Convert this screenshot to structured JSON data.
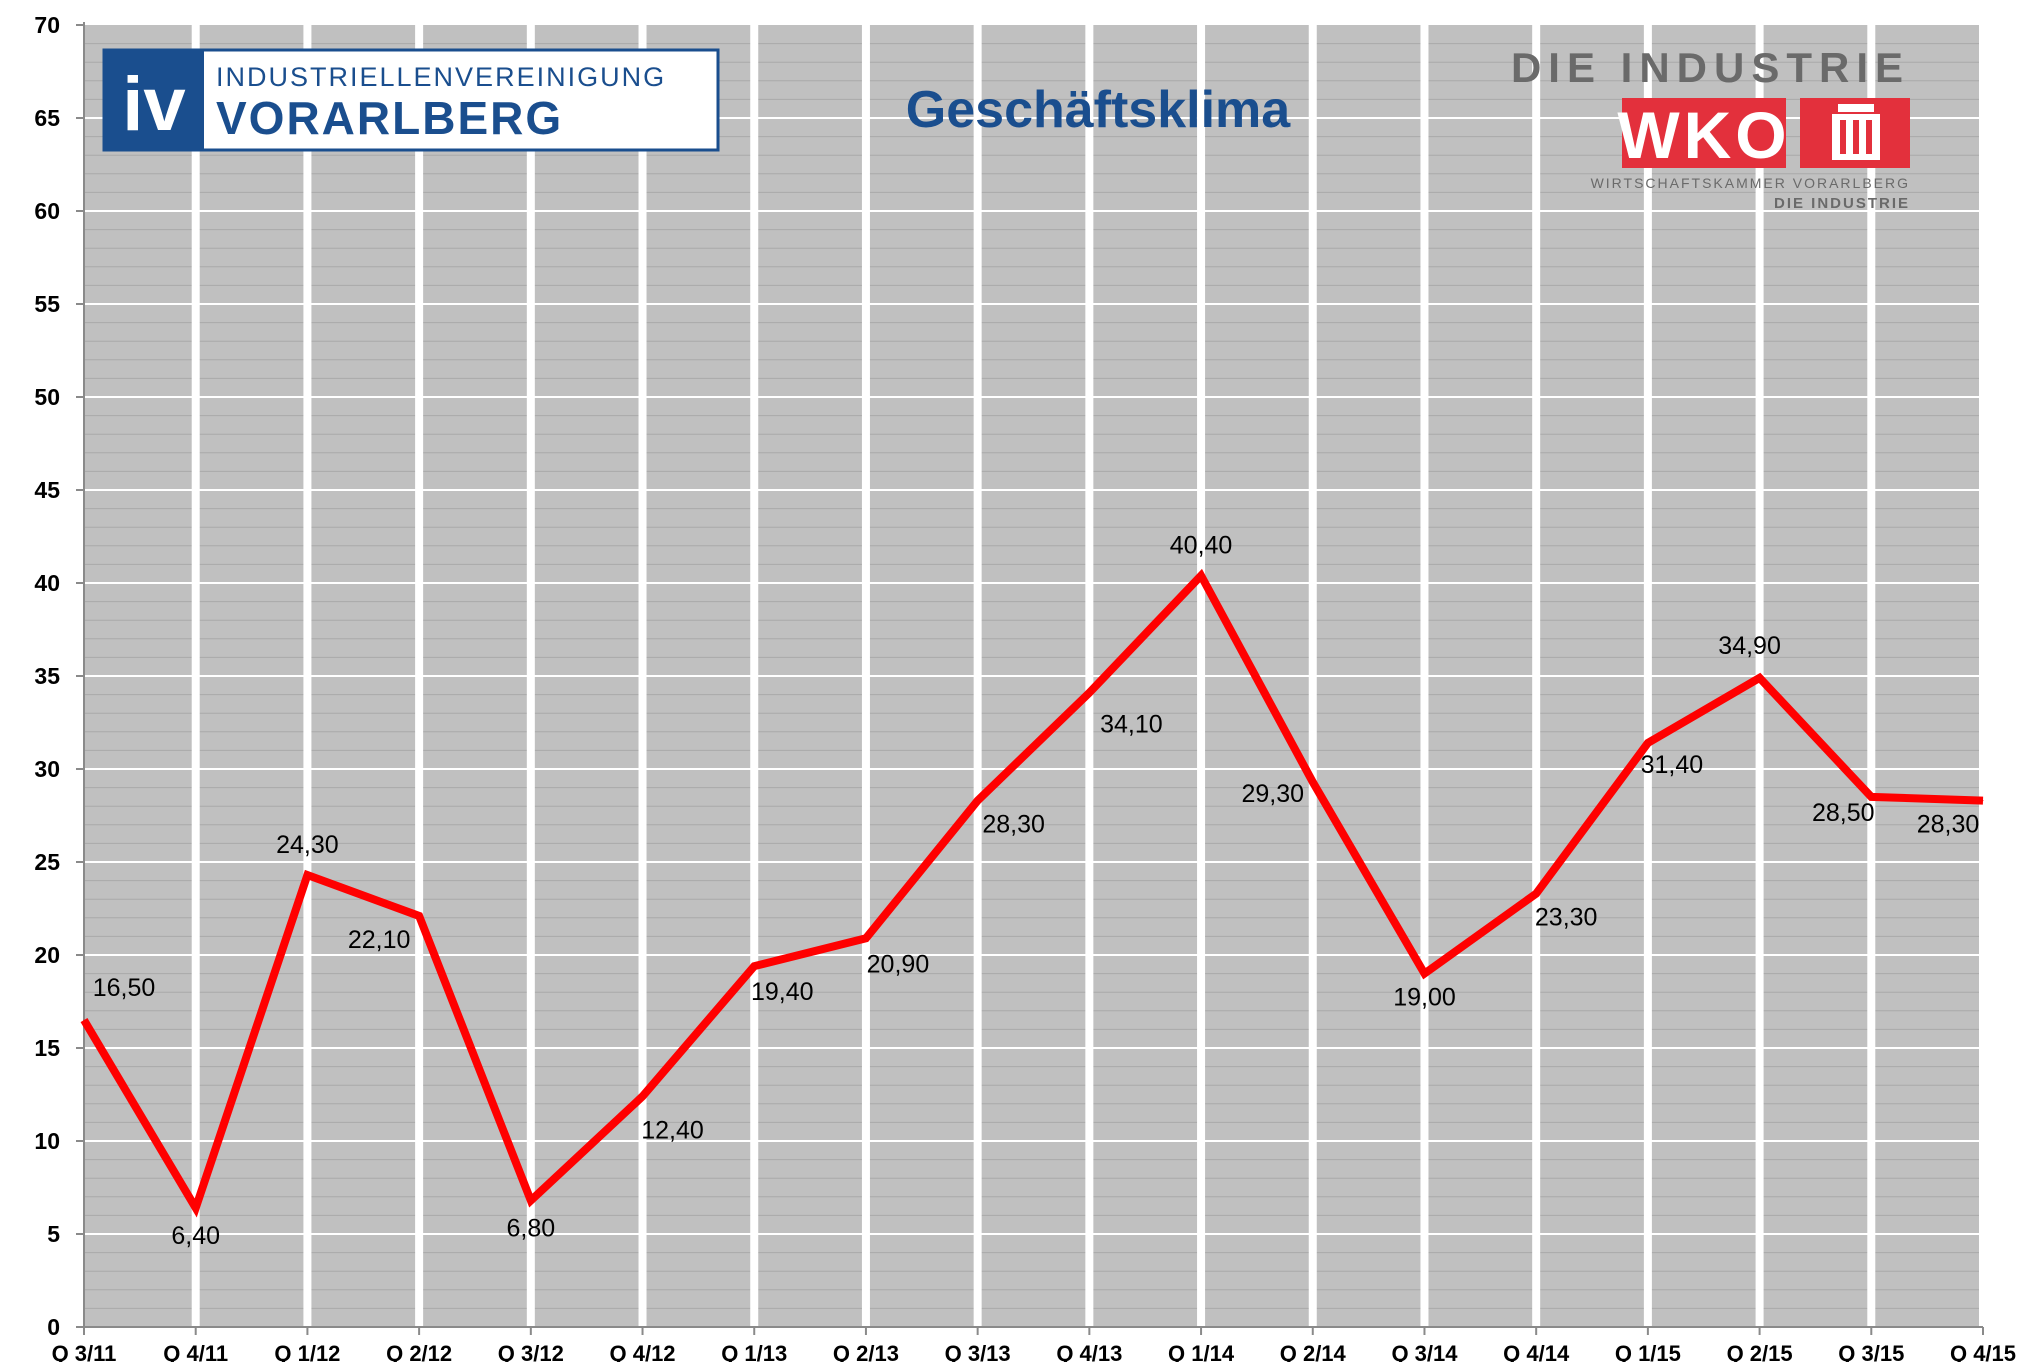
{
  "chart_data": {
    "type": "line",
    "title": "Geschäftsklima",
    "xlabel": "",
    "ylabel": "",
    "ylim": [
      0,
      70
    ],
    "yticks": [
      "0",
      "5",
      "10",
      "15",
      "20",
      "25",
      "30",
      "35",
      "40",
      "45",
      "50",
      "55",
      "60",
      "65",
      "70"
    ],
    "grid": true,
    "categories": [
      "Q 3/11",
      "Q 4/11",
      "Q 1/12",
      "Q 2/12",
      "Q 3/12",
      "Q 4/12",
      "Q 1/13",
      "Q 2/13",
      "Q 3/13",
      "Q 4/13",
      "Q 1/14",
      "Q 2/14",
      "Q 3/14",
      "Q 4/14",
      "Q 1/15",
      "Q 2/15",
      "Q 3/15",
      "Q 4/15"
    ],
    "series": [
      {
        "color": "#ff0000",
        "values": [
          16.5,
          6.4,
          24.3,
          22.1,
          6.8,
          12.4,
          19.4,
          20.9,
          28.3,
          34.1,
          40.4,
          29.3,
          19.0,
          23.3,
          31.4,
          34.9,
          28.5,
          28.3
        ],
        "labels": [
          "16,50",
          "6,40",
          "24,30",
          "22,10",
          "6,80",
          "12,40",
          "19,40",
          "20,90",
          "28,30",
          "34,10",
          "40,40",
          "29,30",
          "19,00",
          "23,30",
          "31,40",
          "34,90",
          "28,50",
          "28,30"
        ]
      }
    ],
    "plot_background": "#c0c0c0"
  },
  "logos": {
    "iv": {
      "mark": "iv",
      "line1": "INDUSTRIELLENVEREINIGUNG",
      "line2": "VORARLBERG",
      "color": "#1a4e8e"
    },
    "wko": {
      "header": "DIE INDUSTRIE",
      "mark": "WKO",
      "line1": "WIRTSCHAFTSKAMMER VORARLBERG",
      "line2": "DIE INDUSTRIE",
      "color": "#e3303c"
    }
  }
}
